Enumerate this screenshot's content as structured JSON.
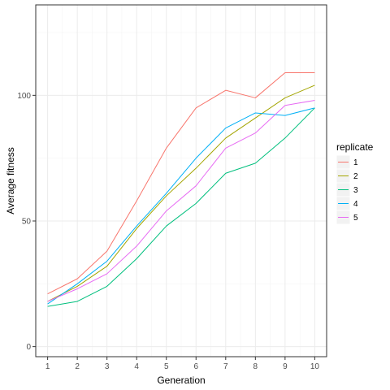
{
  "chart_data": {
    "type": "line",
    "xlabel": "Generation",
    "ylabel": "Average fitness",
    "x": [
      1,
      2,
      3,
      4,
      5,
      6,
      7,
      8,
      9,
      10
    ],
    "xlim": [
      0.6,
      10.4
    ],
    "ylim": [
      -4,
      136
    ],
    "y_ticks": [
      0,
      50,
      100
    ],
    "grid": true,
    "legend_position": "right",
    "legend_title": "replicate",
    "series": [
      {
        "name": "1",
        "color": "#F8766D",
        "values": [
          21,
          27,
          38,
          58,
          79,
          95,
          102,
          99,
          109,
          109
        ]
      },
      {
        "name": "2",
        "color": "#A3A500",
        "values": [
          18,
          24,
          32,
          47,
          60,
          71,
          83,
          91,
          99,
          104
        ]
      },
      {
        "name": "3",
        "color": "#00BF7D",
        "values": [
          16,
          18,
          24,
          35,
          48,
          57,
          69,
          73,
          83,
          95
        ]
      },
      {
        "name": "4",
        "color": "#00B0F6",
        "values": [
          17,
          25,
          34,
          48,
          61,
          75,
          87,
          93,
          92,
          95
        ]
      },
      {
        "name": "5",
        "color": "#E76BF3",
        "values": [
          18,
          23,
          29,
          40,
          54,
          64,
          79,
          85,
          96,
          98
        ]
      }
    ]
  }
}
